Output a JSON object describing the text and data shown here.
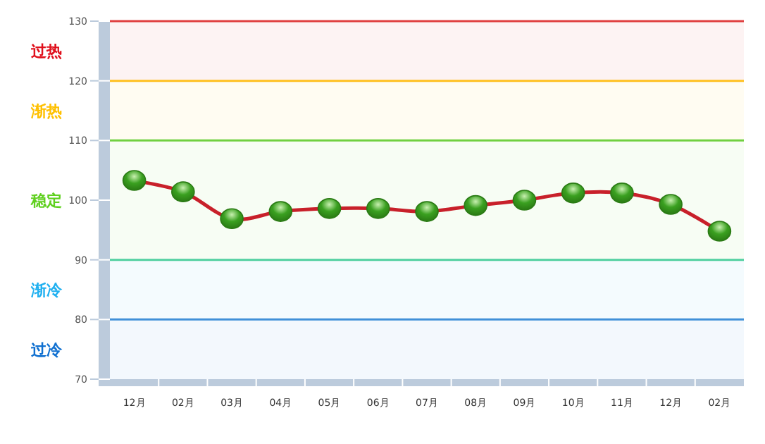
{
  "chart_data": {
    "type": "line",
    "categories": [
      "12月",
      "02月",
      "03月",
      "04月",
      "05月",
      "06月",
      "07月",
      "08月",
      "09月",
      "10月",
      "11月",
      "12月",
      "02月"
    ],
    "series": [
      {
        "color": "#c8202a",
        "values": [
          103.3,
          101.4,
          96.9,
          98.1,
          98.6,
          98.6,
          98.1,
          99.1,
          100,
          101.2,
          101.2,
          99.3,
          94.8
        ]
      }
    ],
    "ylim": [
      70,
      130
    ],
    "yticks": [
      70,
      80,
      90,
      100,
      110,
      120,
      130
    ],
    "marker": "circle",
    "line_style": "solid",
    "grid": false,
    "ref_lines": [
      {
        "axis": "y",
        "value": 130,
        "color": "#e04040"
      },
      {
        "axis": "y",
        "value": 120,
        "color": "#ffc020"
      },
      {
        "axis": "y",
        "value": 110,
        "color": "#70d040"
      },
      {
        "axis": "y",
        "value": 90,
        "color": "#50d0a0"
      },
      {
        "axis": "y",
        "value": 80,
        "color": "#4090d8"
      }
    ],
    "bands": [
      {
        "axis": "y",
        "from": 120,
        "to": 130,
        "label": "过热",
        "color": "#e0101c"
      },
      {
        "axis": "y",
        "from": 110,
        "to": 120,
        "label": "渐热",
        "color": "#ffc000"
      },
      {
        "axis": "y",
        "from": 90,
        "to": 110,
        "label": "稳定",
        "color": "#60d020"
      },
      {
        "axis": "y",
        "from": 80,
        "to": 90,
        "label": "渐冷",
        "color": "#20b0f0"
      },
      {
        "axis": "y",
        "from": 70,
        "to": 80,
        "label": "过冷",
        "color": "#1070d0"
      }
    ]
  }
}
